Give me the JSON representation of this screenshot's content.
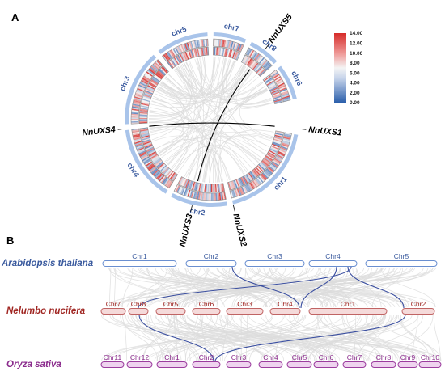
{
  "panels": {
    "a": "A",
    "b": "B"
  },
  "colors": {
    "ideogram": "#a9c4ea",
    "chr_label": "#3a5a9e",
    "link": "#000000",
    "bg_link": "#dcdcdc",
    "syn_link": "#3b4fa0",
    "species_at": "#3a5a9e",
    "species_nn": "#a02622",
    "species_os": "#8a2a8c",
    "bar_at_fill": "#ffffff",
    "bar_at_stroke": "#6a8fd0",
    "bar_nn_fill": "#f5dada",
    "bar_nn_stroke": "#c06464",
    "bar_os_fill": "#efd3ef",
    "bar_os_stroke": "#9b3d9e",
    "heat_low": "#2b5fab",
    "heat_mid": "#f4f4f4",
    "heat_high": "#d62b29"
  },
  "circos": {
    "chromosomes": [
      {
        "name": "chr1",
        "start": 100,
        "end": 166
      },
      {
        "name": "chr2",
        "start": 170,
        "end": 208
      },
      {
        "name": "chr4",
        "start": 212,
        "end": 263
      },
      {
        "name": "chr3",
        "start": 267,
        "end": 318
      },
      {
        "name": "chr5",
        "start": 322,
        "end": 357
      },
      {
        "name": "chr7",
        "start": 1,
        "end": 23
      },
      {
        "name": "chr8",
        "start": 27,
        "end": 48
      },
      {
        "name": "chr6",
        "start": 52,
        "end": 76
      }
    ],
    "genes": [
      {
        "name": "NnUXS1",
        "angle": 96
      },
      {
        "name": "NnUXS2",
        "angle": 166
      },
      {
        "name": "NnUXS3",
        "angle": 193
      },
      {
        "name": "NnUXS4",
        "angle": 264
      },
      {
        "name": "NnUXS5",
        "angle": 37
      }
    ],
    "links": [
      [
        264,
        96
      ],
      [
        193,
        37
      ]
    ],
    "legend": {
      "ticks": [
        "14.00",
        "12.00",
        "10.00",
        "8.00",
        "6.00",
        "4.00",
        "2.00",
        "0.00"
      ],
      "min": 0,
      "max": 14
    }
  },
  "synteny": {
    "rows": [
      {
        "species": "Arabidopsis thaliana",
        "key": "at",
        "chromosomes": [
          {
            "name": "Chr1",
            "from": 127,
            "to": 218
          },
          {
            "name": "Chr2",
            "from": 230,
            "to": 292
          },
          {
            "name": "Chr3",
            "from": 303,
            "to": 376
          },
          {
            "name": "Chr4",
            "from": 382,
            "to": 441
          },
          {
            "name": "Chr5",
            "from": 452,
            "to": 540
          }
        ]
      },
      {
        "species": "Nelumbo nucifera",
        "key": "nn",
        "chromosomes": [
          {
            "name": "Chr7",
            "from": 125,
            "to": 155
          },
          {
            "name": "Chr8",
            "from": 159,
            "to": 183
          },
          {
            "name": "Chr5",
            "from": 193,
            "to": 229
          },
          {
            "name": "Chr6",
            "from": 238,
            "to": 272
          },
          {
            "name": "Chr3",
            "from": 280,
            "to": 325
          },
          {
            "name": "Chr4",
            "from": 334,
            "to": 371
          },
          {
            "name": "Chr1",
            "from": 382,
            "to": 478
          },
          {
            "name": "Chr2",
            "from": 497,
            "to": 537
          }
        ]
      },
      {
        "species": "Oryza sativa",
        "key": "os",
        "chromosomes": [
          {
            "name": "Chr11",
            "from": 125,
            "to": 153
          },
          {
            "name": "Chr12",
            "from": 157,
            "to": 188
          },
          {
            "name": "Chr1",
            "from": 194,
            "to": 231
          },
          {
            "name": "Chr2",
            "from": 238,
            "to": 272
          },
          {
            "name": "Chr3",
            "from": 280,
            "to": 310
          },
          {
            "name": "Chr4",
            "from": 320,
            "to": 349
          },
          {
            "name": "Chr5",
            "from": 355,
            "to": 385
          },
          {
            "name": "Chr6",
            "from": 388,
            "to": 418
          },
          {
            "name": "Chr7",
            "from": 424,
            "to": 452
          },
          {
            "name": "Chr8",
            "from": 459,
            "to": 489
          },
          {
            "name": "Chr9",
            "from": 492,
            "to": 516
          },
          {
            "name": "Chr10",
            "from": 518,
            "to": 545
          }
        ]
      }
    ],
    "highlight_links": [
      {
        "from_row": "at",
        "from_x": 287,
        "to_row": "nn",
        "to_x": 370
      },
      {
        "from_row": "at",
        "from_x": 416,
        "to_row": "nn",
        "to_x": 372
      },
      {
        "from_row": "at",
        "from_x": 430,
        "to_row": "nn",
        "to_x": 499
      },
      {
        "from_row": "at",
        "from_x": 434,
        "to_row": "nn",
        "to_x": 171
      },
      {
        "from_row": "nn",
        "from_x": 172,
        "to_row": "os",
        "to_x": 264
      },
      {
        "from_row": "nn",
        "from_x": 501,
        "to_row": "os",
        "to_x": 266
      }
    ]
  }
}
